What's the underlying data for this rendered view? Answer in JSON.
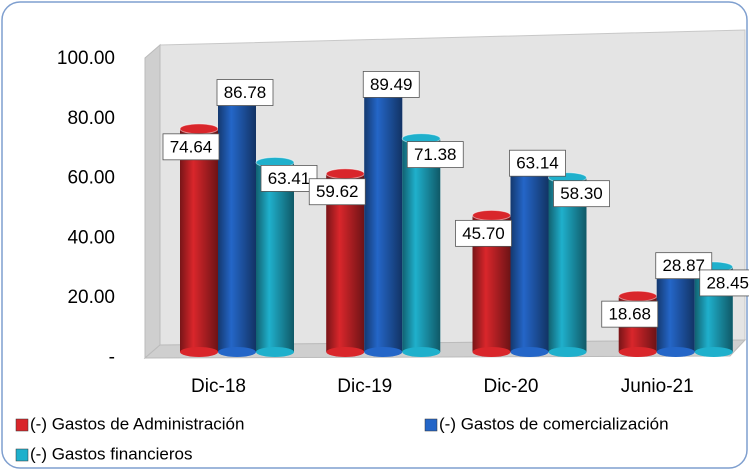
{
  "chart_data": {
    "type": "bar",
    "categories": [
      "Dic-18",
      "Dic-19",
      "Dic-20",
      "Junio-21"
    ],
    "series": [
      {
        "name": "(-) Gastos de Administración",
        "color": "#d9262b",
        "values": [
          74.64,
          59.62,
          45.7,
          18.68
        ],
        "value_labels": [
          "74.64",
          "59.62",
          "45.70",
          "18.68"
        ]
      },
      {
        "name": "(-) Gastos de comercialización",
        "color": "#2466c8",
        "values": [
          86.78,
          89.49,
          63.14,
          28.87
        ],
        "value_labels": [
          "86.78",
          "89.49",
          "63.14",
          "28.87"
        ]
      },
      {
        "name": "(-) Gastos financieros",
        "color": "#1fb0cc",
        "values": [
          63.41,
          71.38,
          58.3,
          28.45
        ],
        "value_labels": [
          "63.41",
          "71.38",
          "58.30",
          "28.45"
        ]
      }
    ],
    "ylim": [
      0,
      100
    ],
    "yticks": [
      {
        "value": 0,
        "label": "-"
      },
      {
        "value": 20,
        "label": "20.00"
      },
      {
        "value": 40,
        "label": "40.00"
      },
      {
        "value": 60,
        "label": "60.00"
      },
      {
        "value": 80,
        "label": "80.00"
      },
      {
        "value": 100,
        "label": "100.00"
      }
    ],
    "grid": false
  }
}
